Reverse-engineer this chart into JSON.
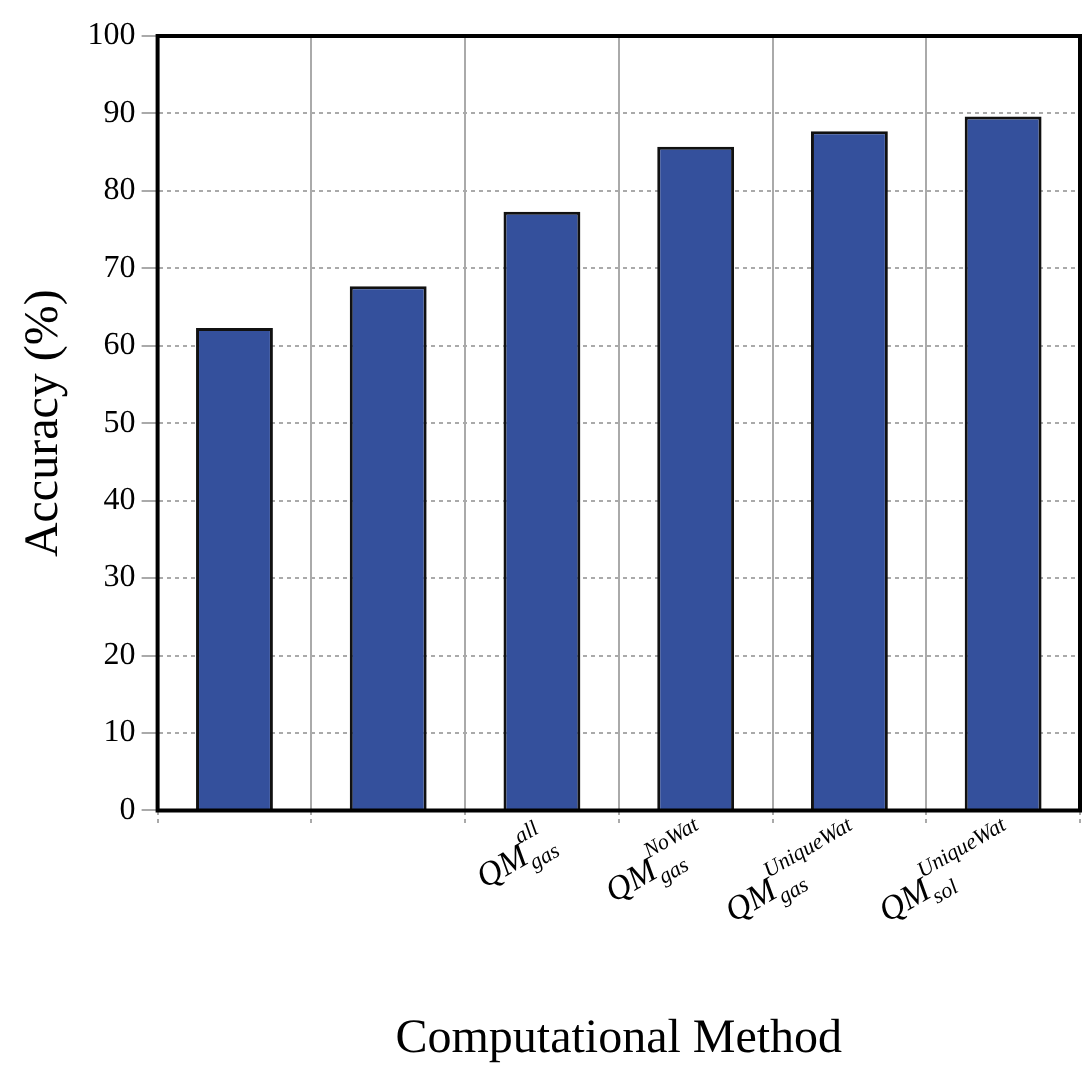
{
  "chart_data": {
    "type": "bar",
    "xlabel": "Computational Method",
    "ylabel": "Accuracy (%)",
    "categories": [
      null,
      null,
      "QM$^{all}$$_{gas}$",
      "QM$^{NoWat}$$_{gas}$",
      "QM$^{UniqueWat}$$_{gas}$",
      "QM$^{UniqueWat}$$_{sol}$"
    ],
    "values": [
      62.3,
      67.7,
      77.3,
      85.7,
      87.7,
      89.6
    ],
    "color": "#34509c",
    "ylim": [
      0,
      100
    ],
    "yticks": [
      0,
      10,
      20,
      30,
      40,
      50,
      60,
      70,
      80,
      90,
      100
    ],
    "grid": true,
    "legend": false
  }
}
